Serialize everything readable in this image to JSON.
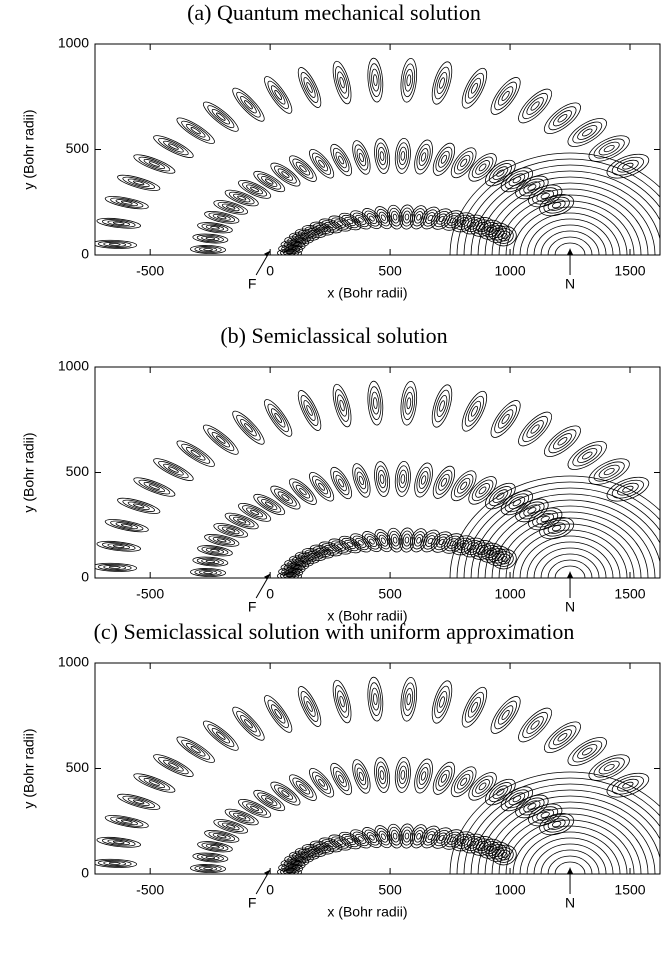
{
  "chart_data": [
    {
      "type": "contour",
      "title": "(a) Quantum mechanical solution",
      "xlabel": "x (Bohr radii)",
      "ylabel": "y (Bohr radii)",
      "xlim": [
        -730,
        1625
      ],
      "ylim": [
        0,
        1000
      ],
      "xticks": [
        -500,
        0,
        500,
        1000,
        1500
      ],
      "yticks": [
        0,
        500,
        1000
      ],
      "annotations": [
        {
          "text": "F",
          "x": 0,
          "y": 20
        },
        {
          "text": "N",
          "x": 1250,
          "y": 30
        }
      ]
    },
    {
      "type": "contour",
      "title": "(b) Semiclassical solution",
      "xlabel": "x (Bohr radii)",
      "ylabel": "y (Bohr radii)",
      "xlim": [
        -730,
        1625
      ],
      "ylim": [
        0,
        1000
      ],
      "xticks": [
        -500,
        0,
        500,
        1000,
        1500
      ],
      "yticks": [
        0,
        500,
        1000
      ],
      "annotations": [
        {
          "text": "F",
          "x": 0,
          "y": 20
        },
        {
          "text": "N",
          "x": 1250,
          "y": 30
        }
      ]
    },
    {
      "type": "contour",
      "title": "(c) Semiclassical solution with uniform approximation",
      "xlabel": "x (Bohr radii)",
      "ylabel": "y (Bohr radii)",
      "xlim": [
        -730,
        1625
      ],
      "ylim": [
        0,
        1000
      ],
      "xticks": [
        -500,
        0,
        500,
        1000,
        1500
      ],
      "yticks": [
        0,
        500,
        1000
      ],
      "annotations": [
        {
          "text": "F",
          "x": 0,
          "y": 20
        },
        {
          "text": "N",
          "x": 1250,
          "y": 30
        }
      ]
    }
  ]
}
